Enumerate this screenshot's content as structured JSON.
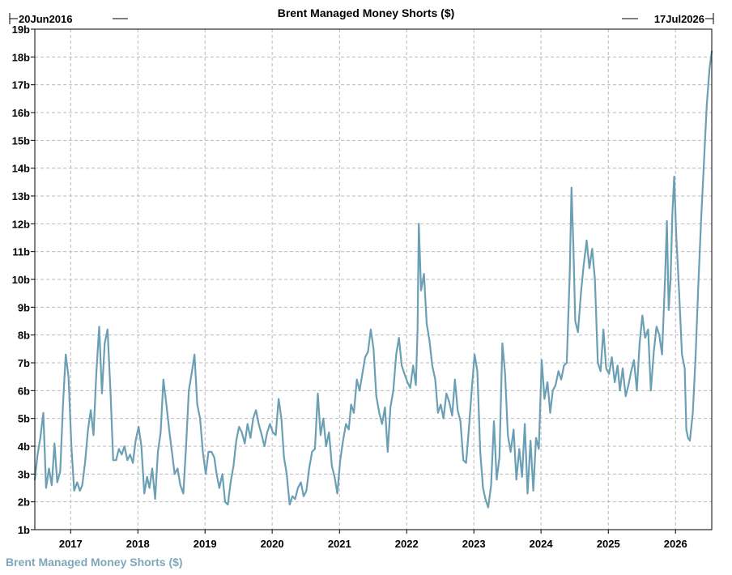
{
  "chart_data": {
    "type": "line",
    "title": "Brent Managed Money Shorts ($)",
    "range_start": "20Jun2016",
    "range_end": "17Jul2026",
    "xlabel": "",
    "ylabel": "",
    "x_ticks": [
      "2017",
      "2018",
      "2019",
      "2020",
      "2021",
      "2022",
      "2023",
      "2024",
      "2025",
      "2026"
    ],
    "y_ticks": [
      "1b",
      "2b",
      "3b",
      "4b",
      "5b",
      "6b",
      "7b",
      "8b",
      "9b",
      "10b",
      "11b",
      "12b",
      "13b",
      "14b",
      "15b",
      "16b",
      "17b",
      "18b",
      "19b"
    ],
    "ylim": [
      1,
      19
    ],
    "grid": true,
    "legend_position": "bottom-left",
    "series": [
      {
        "name": "Brent Managed Money Shorts ($)",
        "color": "#6a9fb4",
        "unit": "billion USD",
        "points": [
          [
            "2016-06-20",
            2.8
          ],
          [
            "2016-07-05",
            3.7
          ],
          [
            "2016-07-20",
            4.3
          ],
          [
            "2016-08-05",
            5.2
          ],
          [
            "2016-08-20",
            2.5
          ],
          [
            "2016-09-05",
            3.2
          ],
          [
            "2016-09-20",
            2.6
          ],
          [
            "2016-10-05",
            4.1
          ],
          [
            "2016-10-20",
            2.7
          ],
          [
            "2016-11-05",
            3.1
          ],
          [
            "2016-11-20",
            5.5
          ],
          [
            "2016-12-05",
            7.3
          ],
          [
            "2016-12-20",
            6.5
          ],
          [
            "2017-01-05",
            4.0
          ],
          [
            "2017-01-20",
            2.4
          ],
          [
            "2017-02-05",
            2.7
          ],
          [
            "2017-02-20",
            2.4
          ],
          [
            "2017-03-05",
            2.6
          ],
          [
            "2017-03-20",
            3.4
          ],
          [
            "2017-04-05",
            4.6
          ],
          [
            "2017-04-20",
            5.3
          ],
          [
            "2017-05-05",
            4.4
          ],
          [
            "2017-05-20",
            6.6
          ],
          [
            "2017-06-05",
            8.3
          ],
          [
            "2017-06-20",
            5.9
          ],
          [
            "2017-07-05",
            7.7
          ],
          [
            "2017-07-20",
            8.2
          ],
          [
            "2017-08-05",
            6.0
          ],
          [
            "2017-08-20",
            3.5
          ],
          [
            "2017-09-05",
            3.5
          ],
          [
            "2017-09-20",
            3.9
          ],
          [
            "2017-10-05",
            3.7
          ],
          [
            "2017-10-20",
            4.0
          ],
          [
            "2017-11-05",
            3.5
          ],
          [
            "2017-11-20",
            3.7
          ],
          [
            "2017-12-05",
            3.4
          ],
          [
            "2017-12-20",
            4.2
          ],
          [
            "2018-01-05",
            4.7
          ],
          [
            "2018-01-20",
            4.0
          ],
          [
            "2018-02-05",
            2.3
          ],
          [
            "2018-02-20",
            2.9
          ],
          [
            "2018-03-05",
            2.5
          ],
          [
            "2018-03-20",
            3.2
          ],
          [
            "2018-04-05",
            2.1
          ],
          [
            "2018-04-20",
            3.8
          ],
          [
            "2018-05-05",
            4.5
          ],
          [
            "2018-05-20",
            6.4
          ],
          [
            "2018-06-05",
            5.5
          ],
          [
            "2018-06-20",
            4.6
          ],
          [
            "2018-07-05",
            3.8
          ],
          [
            "2018-07-20",
            3.0
          ],
          [
            "2018-08-05",
            3.2
          ],
          [
            "2018-08-20",
            2.6
          ],
          [
            "2018-09-05",
            2.3
          ],
          [
            "2018-09-20",
            4.0
          ],
          [
            "2018-10-05",
            6.0
          ],
          [
            "2018-10-20",
            6.6
          ],
          [
            "2018-11-05",
            7.3
          ],
          [
            "2018-11-20",
            5.5
          ],
          [
            "2018-12-05",
            5.0
          ],
          [
            "2018-12-20",
            3.8
          ],
          [
            "2019-01-05",
            3.0
          ],
          [
            "2019-01-20",
            3.8
          ],
          [
            "2019-02-05",
            3.8
          ],
          [
            "2019-02-20",
            3.6
          ],
          [
            "2019-03-05",
            3.0
          ],
          [
            "2019-03-20",
            2.5
          ],
          [
            "2019-04-05",
            3.0
          ],
          [
            "2019-04-20",
            2.0
          ],
          [
            "2019-05-05",
            1.9
          ],
          [
            "2019-05-20",
            2.7
          ],
          [
            "2019-06-05",
            3.3
          ],
          [
            "2019-06-20",
            4.2
          ],
          [
            "2019-07-05",
            4.7
          ],
          [
            "2019-07-20",
            4.5
          ],
          [
            "2019-08-05",
            4.1
          ],
          [
            "2019-08-20",
            4.8
          ],
          [
            "2019-09-05",
            4.3
          ],
          [
            "2019-09-20",
            5.0
          ],
          [
            "2019-10-05",
            5.3
          ],
          [
            "2019-10-20",
            4.8
          ],
          [
            "2019-11-05",
            4.4
          ],
          [
            "2019-11-20",
            4.0
          ],
          [
            "2019-12-05",
            4.5
          ],
          [
            "2019-12-20",
            4.8
          ],
          [
            "2020-01-05",
            4.5
          ],
          [
            "2020-01-20",
            4.4
          ],
          [
            "2020-02-05",
            5.7
          ],
          [
            "2020-02-20",
            5.0
          ],
          [
            "2020-03-05",
            3.6
          ],
          [
            "2020-03-20",
            3.0
          ],
          [
            "2020-04-05",
            1.9
          ],
          [
            "2020-04-20",
            2.2
          ],
          [
            "2020-05-05",
            2.1
          ],
          [
            "2020-05-20",
            2.5
          ],
          [
            "2020-06-05",
            2.7
          ],
          [
            "2020-06-20",
            2.2
          ],
          [
            "2020-07-05",
            2.4
          ],
          [
            "2020-07-20",
            3.2
          ],
          [
            "2020-08-05",
            3.8
          ],
          [
            "2020-08-20",
            3.9
          ],
          [
            "2020-09-05",
            5.9
          ],
          [
            "2020-09-20",
            4.4
          ],
          [
            "2020-10-05",
            5.0
          ],
          [
            "2020-10-20",
            4.0
          ],
          [
            "2020-11-05",
            4.5
          ],
          [
            "2020-11-20",
            3.3
          ],
          [
            "2020-12-05",
            2.9
          ],
          [
            "2020-12-20",
            2.3
          ],
          [
            "2021-01-05",
            3.5
          ],
          [
            "2021-01-20",
            4.2
          ],
          [
            "2021-02-05",
            4.8
          ],
          [
            "2021-02-20",
            4.6
          ],
          [
            "2021-03-05",
            5.5
          ],
          [
            "2021-03-20",
            5.2
          ],
          [
            "2021-04-05",
            6.4
          ],
          [
            "2021-04-20",
            6.0
          ],
          [
            "2021-05-05",
            6.6
          ],
          [
            "2021-05-20",
            7.2
          ],
          [
            "2021-06-05",
            7.4
          ],
          [
            "2021-06-20",
            8.2
          ],
          [
            "2021-07-05",
            7.5
          ],
          [
            "2021-07-20",
            5.8
          ],
          [
            "2021-08-05",
            5.2
          ],
          [
            "2021-08-20",
            4.8
          ],
          [
            "2021-09-05",
            5.4
          ],
          [
            "2021-09-20",
            3.8
          ],
          [
            "2021-10-05",
            5.4
          ],
          [
            "2021-10-20",
            6.0
          ],
          [
            "2021-11-05",
            7.3
          ],
          [
            "2021-11-20",
            7.9
          ],
          [
            "2021-12-05",
            6.9
          ],
          [
            "2021-12-20",
            6.6
          ],
          [
            "2022-01-05",
            6.3
          ],
          [
            "2022-01-20",
            6.1
          ],
          [
            "2022-02-05",
            6.9
          ],
          [
            "2022-02-20",
            6.2
          ],
          [
            "2022-03-01",
            8.2
          ],
          [
            "2022-03-08",
            12.0
          ],
          [
            "2022-03-20",
            9.6
          ],
          [
            "2022-04-05",
            10.2
          ],
          [
            "2022-04-20",
            8.4
          ],
          [
            "2022-05-05",
            7.8
          ],
          [
            "2022-05-20",
            6.9
          ],
          [
            "2022-06-05",
            6.4
          ],
          [
            "2022-06-20",
            5.2
          ],
          [
            "2022-07-05",
            5.5
          ],
          [
            "2022-07-20",
            5.0
          ],
          [
            "2022-08-05",
            5.9
          ],
          [
            "2022-08-20",
            5.6
          ],
          [
            "2022-09-05",
            5.1
          ],
          [
            "2022-09-20",
            6.4
          ],
          [
            "2022-10-05",
            5.3
          ],
          [
            "2022-10-20",
            4.9
          ],
          [
            "2022-11-05",
            3.5
          ],
          [
            "2022-11-20",
            3.4
          ],
          [
            "2022-12-05",
            4.6
          ],
          [
            "2022-12-20",
            6.0
          ],
          [
            "2023-01-05",
            7.3
          ],
          [
            "2023-01-20",
            6.7
          ],
          [
            "2023-02-05",
            3.8
          ],
          [
            "2023-02-20",
            2.5
          ],
          [
            "2023-03-05",
            2.1
          ],
          [
            "2023-03-20",
            1.8
          ],
          [
            "2023-04-05",
            2.6
          ],
          [
            "2023-04-20",
            4.9
          ],
          [
            "2023-05-05",
            2.8
          ],
          [
            "2023-05-20",
            3.6
          ],
          [
            "2023-06-05",
            7.7
          ],
          [
            "2023-06-20",
            6.6
          ],
          [
            "2023-07-05",
            4.4
          ],
          [
            "2023-07-20",
            3.8
          ],
          [
            "2023-08-05",
            4.6
          ],
          [
            "2023-08-20",
            2.8
          ],
          [
            "2023-09-05",
            3.9
          ],
          [
            "2023-09-20",
            2.9
          ],
          [
            "2023-10-05",
            4.8
          ],
          [
            "2023-10-20",
            2.3
          ],
          [
            "2023-11-05",
            4.2
          ],
          [
            "2023-11-20",
            2.4
          ],
          [
            "2023-12-05",
            4.3
          ],
          [
            "2023-12-20",
            3.9
          ],
          [
            "2024-01-05",
            7.1
          ],
          [
            "2024-01-20",
            5.7
          ],
          [
            "2024-02-05",
            6.3
          ],
          [
            "2024-02-20",
            5.2
          ],
          [
            "2024-03-05",
            6.0
          ],
          [
            "2024-03-20",
            6.2
          ],
          [
            "2024-04-05",
            6.7
          ],
          [
            "2024-04-20",
            6.4
          ],
          [
            "2024-05-05",
            6.9
          ],
          [
            "2024-05-20",
            7.0
          ],
          [
            "2024-06-05",
            10.2
          ],
          [
            "2024-06-15",
            13.3
          ],
          [
            "2024-06-25",
            11.2
          ],
          [
            "2024-07-05",
            8.5
          ],
          [
            "2024-07-20",
            8.1
          ],
          [
            "2024-08-05",
            9.5
          ],
          [
            "2024-08-20",
            10.5
          ],
          [
            "2024-09-05",
            11.4
          ],
          [
            "2024-09-20",
            10.4
          ],
          [
            "2024-10-05",
            11.1
          ],
          [
            "2024-10-20",
            10.0
          ],
          [
            "2024-11-05",
            7.0
          ],
          [
            "2024-11-20",
            6.7
          ],
          [
            "2024-12-05",
            8.2
          ],
          [
            "2024-12-20",
            6.8
          ],
          [
            "2025-01-05",
            6.6
          ],
          [
            "2025-01-20",
            7.2
          ],
          [
            "2025-02-05",
            6.3
          ],
          [
            "2025-02-20",
            6.9
          ],
          [
            "2025-03-05",
            6.0
          ],
          [
            "2025-03-20",
            6.8
          ],
          [
            "2025-04-05",
            5.8
          ],
          [
            "2025-04-20",
            6.2
          ],
          [
            "2025-05-05",
            6.7
          ],
          [
            "2025-05-20",
            7.1
          ],
          [
            "2025-06-05",
            6.0
          ],
          [
            "2025-06-20",
            7.7
          ],
          [
            "2025-07-05",
            8.7
          ],
          [
            "2025-07-20",
            7.9
          ],
          [
            "2025-08-05",
            8.2
          ],
          [
            "2025-08-20",
            6.0
          ],
          [
            "2025-09-05",
            7.4
          ],
          [
            "2025-09-20",
            8.3
          ],
          [
            "2025-10-05",
            8.0
          ],
          [
            "2025-10-20",
            7.3
          ],
          [
            "2025-11-05",
            10.0
          ],
          [
            "2025-11-15",
            12.1
          ],
          [
            "2025-11-25",
            8.9
          ],
          [
            "2025-12-05",
            10.0
          ],
          [
            "2025-12-15",
            12.4
          ],
          [
            "2025-12-25",
            13.7
          ],
          [
            "2026-01-05",
            11.6
          ],
          [
            "2026-01-20",
            9.6
          ],
          [
            "2026-02-05",
            7.3
          ],
          [
            "2026-02-20",
            6.8
          ],
          [
            "2026-03-01",
            4.6
          ],
          [
            "2026-03-10",
            4.3
          ],
          [
            "2026-03-20",
            4.2
          ],
          [
            "2026-04-05",
            5.2
          ],
          [
            "2026-04-20",
            7.2
          ],
          [
            "2026-05-05",
            9.8
          ],
          [
            "2026-05-20",
            12.1
          ],
          [
            "2026-06-05",
            14.3
          ],
          [
            "2026-06-20",
            16.3
          ],
          [
            "2026-07-05",
            17.6
          ],
          [
            "2026-07-17",
            18.2
          ]
        ]
      }
    ]
  }
}
